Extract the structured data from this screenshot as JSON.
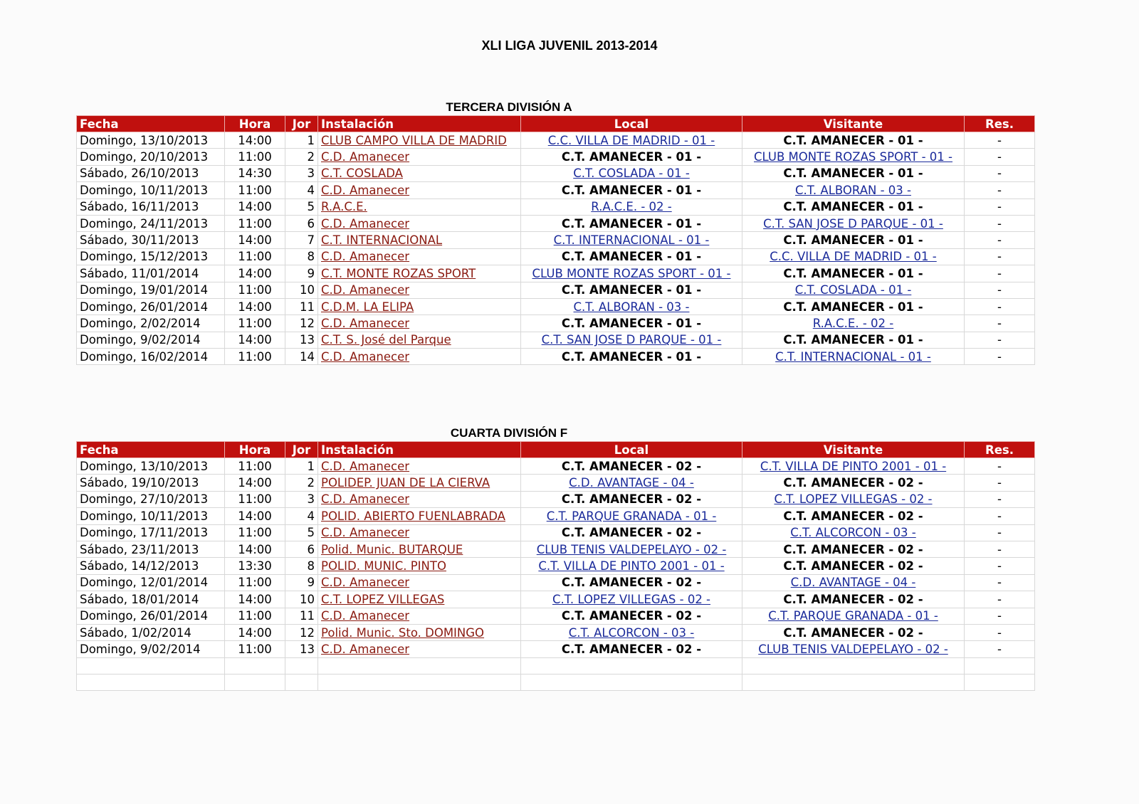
{
  "title": "XLI LIGA JUVENIL 2013-2014",
  "headers": {
    "fecha": "Fecha",
    "hora": "Hora",
    "jor": "Jor",
    "instalacion": "Instalación",
    "local": "Local",
    "visitante": "Visitante",
    "res": "Res."
  },
  "colors": {
    "header_bg": "#c0100e",
    "venue_link": "#8a1a10",
    "team_link": "#1a2a9a"
  },
  "sections": [
    {
      "title": "TERCERA DIVISIÓN A",
      "rows": [
        {
          "fecha": "Domingo, 13/10/2013",
          "hora": "14:00",
          "jor": "1",
          "instalacion": "CLUB CAMPO VILLA DE MADRID",
          "local": "C.C. VILLA DE MADRID - 01 -",
          "visitante": "C.T. AMANECER - 01 -",
          "res": "-"
        },
        {
          "fecha": "Domingo, 20/10/2013",
          "hora": "11:00",
          "jor": "2",
          "instalacion": "C.D. Amanecer",
          "local": "C.T. AMANECER - 01 -",
          "visitante": "CLUB MONTE ROZAS SPORT - 01 -",
          "res": "-"
        },
        {
          "fecha": "Sábado, 26/10/2013",
          "hora": "14:30",
          "jor": "3",
          "instalacion": "C.T. COSLADA",
          "local": "C.T. COSLADA - 01 -",
          "visitante": "C.T. AMANECER - 01 -",
          "res": "-"
        },
        {
          "fecha": "Domingo, 10/11/2013",
          "hora": "11:00",
          "jor": "4",
          "instalacion": "C.D. Amanecer",
          "local": "C.T. AMANECER - 01 -",
          "visitante": "C.T. ALBORAN - 03 -",
          "res": "-"
        },
        {
          "fecha": "Sábado, 16/11/2013",
          "hora": "14:00",
          "jor": "5",
          "instalacion": "R.A.C.E.",
          "local": "R.A.C.E. - 02 -",
          "visitante": "C.T. AMANECER - 01 -",
          "res": "-"
        },
        {
          "fecha": "Domingo, 24/11/2013",
          "hora": "11:00",
          "jor": "6",
          "instalacion": "C.D. Amanecer",
          "local": "C.T. AMANECER - 01 -",
          "visitante": "C.T. SAN JOSE D PARQUE - 01 -",
          "res": "-"
        },
        {
          "fecha": "Sábado, 30/11/2013",
          "hora": "14:00",
          "jor": "7",
          "instalacion": "C.T. INTERNACIONAL",
          "local": "C.T. INTERNACIONAL - 01 -",
          "visitante": "C.T. AMANECER - 01 -",
          "res": "-"
        },
        {
          "fecha": "Domingo, 15/12/2013",
          "hora": "11:00",
          "jor": "8",
          "instalacion": "C.D. Amanecer",
          "local": "C.T. AMANECER - 01 -",
          "visitante": "C.C. VILLA DE MADRID - 01 -",
          "res": "-"
        },
        {
          "fecha": "Sábado, 11/01/2014",
          "hora": "14:00",
          "jor": "9",
          "instalacion": "C.T. MONTE ROZAS SPORT",
          "local": "CLUB MONTE ROZAS SPORT - 01 -",
          "visitante": "C.T. AMANECER - 01 -",
          "res": "-"
        },
        {
          "fecha": "Domingo, 19/01/2014",
          "hora": "11:00",
          "jor": "10",
          "instalacion": "C.D. Amanecer",
          "local": "C.T. AMANECER - 01 -",
          "visitante": "C.T. COSLADA - 01 -",
          "res": "-"
        },
        {
          "fecha": "Domingo, 26/01/2014",
          "hora": "14:00",
          "jor": "11",
          "instalacion": "C.D.M. LA ELIPA",
          "local": "C.T. ALBORAN - 03 -",
          "visitante": "C.T. AMANECER - 01 -",
          "res": "-"
        },
        {
          "fecha": "Domingo, 2/02/2014",
          "hora": "11:00",
          "jor": "12",
          "instalacion": "C.D. Amanecer",
          "local": "C.T. AMANECER - 01 -",
          "visitante": "R.A.C.E. - 02 -",
          "res": "-"
        },
        {
          "fecha": "Domingo, 9/02/2014",
          "hora": "14:00",
          "jor": "13",
          "instalacion": "C.T. S. José del Parque",
          "local": "C.T. SAN JOSE D PARQUE - 01 -",
          "visitante": "C.T. AMANECER - 01 -",
          "res": "-"
        },
        {
          "fecha": "Domingo, 16/02/2014",
          "hora": "11:00",
          "jor": "14",
          "instalacion": "C.D. Amanecer",
          "local": "C.T. AMANECER - 01 -",
          "visitante": "C.T. INTERNACIONAL - 01 -",
          "res": "-"
        }
      ]
    },
    {
      "title": "CUARTA DIVISIÓN F",
      "rows": [
        {
          "fecha": "Domingo, 13/10/2013",
          "hora": "11:00",
          "jor": "1",
          "instalacion": "C.D. Amanecer",
          "local": "C.T. AMANECER - 02 -",
          "visitante": "C.T. VILLA DE PINTO 2001 - 01 -",
          "res": "-"
        },
        {
          "fecha": "Sábado, 19/10/2013",
          "hora": "14:00",
          "jor": "2",
          "instalacion": "POLIDEP. JUAN DE LA CIERVA",
          "local": "C.D. AVANTAGE - 04 -",
          "visitante": "C.T. AMANECER - 02 -",
          "res": "-"
        },
        {
          "fecha": "Domingo, 27/10/2013",
          "hora": "11:00",
          "jor": "3",
          "instalacion": "C.D. Amanecer",
          "local": "C.T. AMANECER - 02 -",
          "visitante": "C.T. LOPEZ VILLEGAS - 02 -",
          "res": "-"
        },
        {
          "fecha": "Domingo, 10/11/2013",
          "hora": "14:00",
          "jor": "4",
          "instalacion": "POLID. ABIERTO FUENLABRADA",
          "local": "C.T. PARQUE GRANADA - 01 -",
          "visitante": "C.T. AMANECER - 02 -",
          "res": "-"
        },
        {
          "fecha": "Domingo, 17/11/2013",
          "hora": "11:00",
          "jor": "5",
          "instalacion": "C.D. Amanecer",
          "local": "C.T. AMANECER - 02 -",
          "visitante": "C.T. ALCORCON - 03 -",
          "res": "-"
        },
        {
          "fecha": "Sábado, 23/11/2013",
          "hora": "14:00",
          "jor": "6",
          "instalacion": "Polid. Munic. BUTARQUE",
          "local": "CLUB TENIS VALDEPELAYO - 02 -",
          "visitante": "C.T. AMANECER - 02 -",
          "res": "-"
        },
        {
          "fecha": "Sábado, 14/12/2013",
          "hora": "13:30",
          "jor": "8",
          "instalacion": "POLID. MUNIC. PINTO",
          "local": "C.T. VILLA DE PINTO 2001 - 01 -",
          "visitante": "C.T. AMANECER - 02 -",
          "res": "-"
        },
        {
          "fecha": "Domingo, 12/01/2014",
          "hora": "11:00",
          "jor": "9",
          "instalacion": "C.D. Amanecer",
          "local": "C.T. AMANECER - 02 -",
          "visitante": "C.D. AVANTAGE - 04 -",
          "res": "-"
        },
        {
          "fecha": "Sábado, 18/01/2014",
          "hora": "14:00",
          "jor": "10",
          "instalacion": "C.T. LOPEZ VILLEGAS",
          "local": "C.T. LOPEZ VILLEGAS - 02 -",
          "visitante": "C.T. AMANECER - 02 -",
          "res": "-"
        },
        {
          "fecha": "Domingo, 26/01/2014",
          "hora": "11:00",
          "jor": "11",
          "instalacion": "C.D. Amanecer",
          "local": "C.T. AMANECER - 02 -",
          "visitante": "C.T. PARQUE GRANADA - 01 -",
          "res": "-"
        },
        {
          "fecha": "Sábado, 1/02/2014",
          "hora": "14:00",
          "jor": "12",
          "instalacion": "Polid. Munic. Sto. DOMINGO",
          "local": "C.T. ALCORCON - 03 -",
          "visitante": "C.T. AMANECER - 02 -",
          "res": "-"
        },
        {
          "fecha": "Domingo, 9/02/2014",
          "hora": "11:00",
          "jor": "13",
          "instalacion": "C.D. Amanecer",
          "local": "C.T. AMANECER - 02 -",
          "visitante": "CLUB TENIS VALDEPELAYO - 02 -",
          "res": "-"
        },
        {
          "fecha": "",
          "hora": "",
          "jor": "",
          "instalacion": "",
          "local": "",
          "visitante": "",
          "res": ""
        },
        {
          "fecha": "",
          "hora": "",
          "jor": "",
          "instalacion": "",
          "local": "",
          "visitante": "",
          "res": ""
        }
      ]
    }
  ]
}
